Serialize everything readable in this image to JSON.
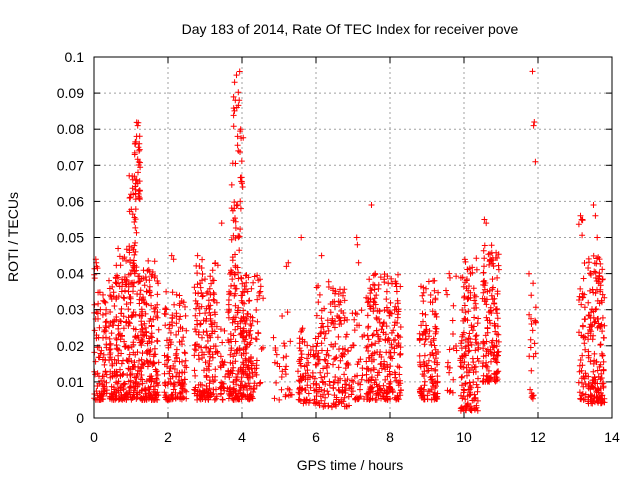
{
  "chart_data": {
    "type": "scatter",
    "title": "Day 183 of 2014, Rate Of TEC Index for receiver pove",
    "xlabel": "GPS time / hours",
    "ylabel": "ROTI / TECUs",
    "xlim": [
      0,
      14
    ],
    "ylim": [
      0,
      0.1
    ],
    "xticks": [
      0,
      2,
      4,
      6,
      8,
      10,
      12,
      14
    ],
    "yticks": [
      0,
      0.01,
      0.02,
      0.03,
      0.04,
      0.05,
      0.06,
      0.07,
      0.08,
      0.09,
      0.1
    ],
    "xtick_labels": [
      "0",
      "2",
      "4",
      "6",
      "8",
      "10",
      "12",
      "14"
    ],
    "ytick_labels": [
      "0",
      "0.01",
      "0.02",
      "0.03",
      "0.04",
      "0.05",
      "0.06",
      "0.07",
      "0.08",
      "0.09",
      "0.1"
    ],
    "grid": true,
    "marker": "+",
    "color": "#ff0000",
    "clusters": [
      {
        "x0": 0.0,
        "x1": 0.35,
        "ymin": 0.005,
        "ymax": 0.035,
        "n": 90
      },
      {
        "x0": 0.0,
        "x1": 0.1,
        "ymin": 0.038,
        "ymax": 0.045,
        "n": 4
      },
      {
        "x0": 0.4,
        "x1": 1.75,
        "ymin": 0.005,
        "ymax": 0.04,
        "n": 420
      },
      {
        "x0": 0.6,
        "x1": 1.1,
        "ymin": 0.035,
        "ymax": 0.047,
        "n": 25
      },
      {
        "x0": 0.95,
        "x1": 1.15,
        "ymin": 0.04,
        "ymax": 0.07,
        "n": 40
      },
      {
        "x0": 1.1,
        "x1": 1.25,
        "ymin": 0.06,
        "ymax": 0.082,
        "n": 30
      },
      {
        "x0": 1.3,
        "x1": 1.75,
        "ymin": 0.035,
        "ymax": 0.045,
        "n": 12
      },
      {
        "x0": 1.9,
        "x1": 2.5,
        "ymin": 0.005,
        "ymax": 0.035,
        "n": 140
      },
      {
        "x0": 2.7,
        "x1": 3.35,
        "ymin": 0.005,
        "ymax": 0.044,
        "n": 180
      },
      {
        "x0": 3.4,
        "x1": 3.55,
        "ymin": 0.005,
        "ymax": 0.025,
        "n": 25
      },
      {
        "x0": 3.6,
        "x1": 4.3,
        "ymin": 0.005,
        "ymax": 0.04,
        "n": 240
      },
      {
        "x0": 3.7,
        "x1": 3.95,
        "ymin": 0.04,
        "ymax": 0.065,
        "n": 30
      },
      {
        "x0": 3.75,
        "x1": 3.95,
        "ymin": 0.07,
        "ymax": 0.096,
        "n": 14
      },
      {
        "x0": 3.95,
        "x1": 4.05,
        "ymin": 0.065,
        "ymax": 0.08,
        "n": 8
      },
      {
        "x0": 4.3,
        "x1": 4.6,
        "ymin": 0.008,
        "ymax": 0.04,
        "n": 30
      },
      {
        "x0": 4.85,
        "x1": 5.35,
        "ymin": 0.005,
        "ymax": 0.03,
        "n": 30
      },
      {
        "x0": 5.5,
        "x1": 6.1,
        "ymin": 0.004,
        "ymax": 0.025,
        "n": 90
      },
      {
        "x0": 6.0,
        "x1": 6.9,
        "ymin": 0.003,
        "ymax": 0.038,
        "n": 170
      },
      {
        "x0": 6.95,
        "x1": 7.3,
        "ymin": 0.005,
        "ymax": 0.03,
        "n": 40
      },
      {
        "x0": 7.35,
        "x1": 8.3,
        "ymin": 0.005,
        "ymax": 0.04,
        "n": 260
      },
      {
        "x0": 8.8,
        "x1": 9.3,
        "ymin": 0.005,
        "ymax": 0.038,
        "n": 130
      },
      {
        "x0": 9.5,
        "x1": 9.8,
        "ymin": 0.007,
        "ymax": 0.04,
        "n": 20
      },
      {
        "x0": 9.9,
        "x1": 10.4,
        "ymin": 0.002,
        "ymax": 0.045,
        "n": 160
      },
      {
        "x0": 10.5,
        "x1": 10.95,
        "ymin": 0.01,
        "ymax": 0.048,
        "n": 150
      },
      {
        "x0": 11.75,
        "x1": 11.95,
        "ymin": 0.005,
        "ymax": 0.04,
        "n": 25
      },
      {
        "x0": 13.1,
        "x1": 13.3,
        "ymin": 0.005,
        "ymax": 0.055,
        "n": 50
      },
      {
        "x0": 13.35,
        "x1": 13.8,
        "ymin": 0.004,
        "ymax": 0.045,
        "n": 170
      }
    ],
    "points": [
      [
        0.05,
        0.044
      ],
      [
        0.06,
        0.043
      ],
      [
        0.07,
        0.042
      ],
      [
        1.0,
        0.062
      ],
      [
        1.05,
        0.066
      ],
      [
        1.1,
        0.073
      ],
      [
        1.12,
        0.076
      ],
      [
        1.15,
        0.078
      ],
      [
        1.18,
        0.081
      ],
      [
        1.2,
        0.075
      ],
      [
        1.22,
        0.074
      ],
      [
        2.1,
        0.045
      ],
      [
        2.15,
        0.044
      ],
      [
        2.8,
        0.045
      ],
      [
        3.45,
        0.054
      ],
      [
        3.8,
        0.093
      ],
      [
        3.85,
        0.095
      ],
      [
        3.82,
        0.088
      ],
      [
        3.86,
        0.086
      ],
      [
        3.88,
        0.078
      ],
      [
        3.9,
        0.074
      ],
      [
        3.95,
        0.06
      ],
      [
        3.97,
        0.058
      ],
      [
        4.0,
        0.065
      ],
      [
        4.02,
        0.064
      ],
      [
        5.2,
        0.042
      ],
      [
        5.25,
        0.043
      ],
      [
        5.6,
        0.05
      ],
      [
        6.15,
        0.045
      ],
      [
        7.1,
        0.05
      ],
      [
        7.12,
        0.048
      ],
      [
        7.15,
        0.043
      ],
      [
        7.5,
        0.059
      ],
      [
        7.6,
        0.04
      ],
      [
        9.2,
        0.038
      ],
      [
        9.6,
        0.04
      ],
      [
        10.55,
        0.055
      ],
      [
        10.6,
        0.054
      ],
      [
        11.85,
        0.096
      ],
      [
        11.88,
        0.081
      ],
      [
        11.9,
        0.082
      ],
      [
        11.93,
        0.071
      ],
      [
        13.15,
        0.056
      ],
      [
        13.2,
        0.055
      ],
      [
        13.5,
        0.059
      ],
      [
        13.55,
        0.056
      ],
      [
        13.6,
        0.05
      ]
    ]
  }
}
